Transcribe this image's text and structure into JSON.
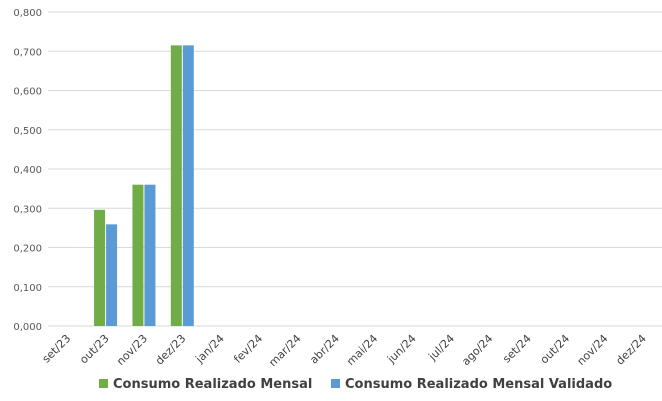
{
  "chart_data": {
    "type": "bar",
    "categories": [
      "set/23",
      "out/23",
      "nov/23",
      "dez/23",
      "jan/24",
      "fev/24",
      "mar/24",
      "abr/24",
      "mai/24",
      "jun/24",
      "jul/24",
      "ago/24",
      "set/24",
      "out/24",
      "nov/24",
      "dez/24"
    ],
    "series": [
      {
        "name": "Consumo Realizado Mensal",
        "color": "#70ad47",
        "values": [
          null,
          0.296,
          0.36,
          0.715,
          null,
          null,
          null,
          null,
          null,
          null,
          null,
          null,
          null,
          null,
          null,
          null
        ]
      },
      {
        "name": "Consumo Realizado Mensal Validado",
        "color": "#5b9bd5",
        "values": [
          null,
          0.259,
          0.36,
          0.715,
          null,
          null,
          null,
          null,
          null,
          null,
          null,
          null,
          null,
          null,
          null,
          null
        ]
      }
    ],
    "ylim": [
      0,
      0.8
    ],
    "yticks": [
      "0,000",
      "0,100",
      "0,200",
      "0,300",
      "0,400",
      "0,500",
      "0,600",
      "0,700",
      "0,800"
    ],
    "grid": true,
    "legend_position": "bottom"
  }
}
